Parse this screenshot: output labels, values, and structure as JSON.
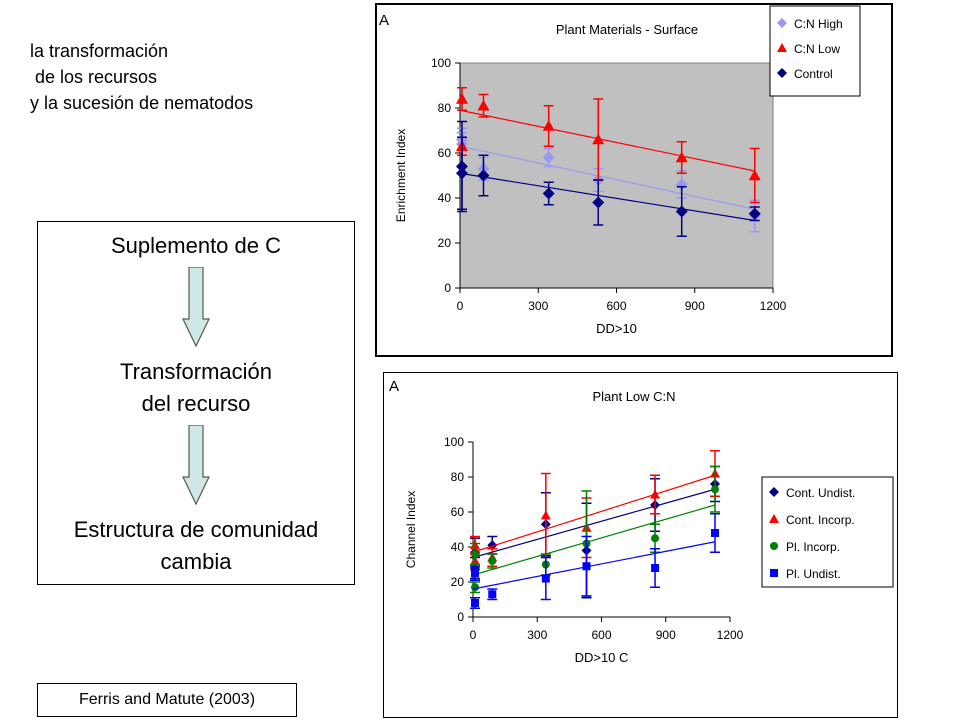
{
  "slide": {
    "title_lines": [
      "la transformación",
      " de los recursos",
      "y la sucesión de nematodos"
    ],
    "flow": {
      "step1": "Suplemento de C",
      "step2_line1": "Transformación",
      "step2_line2": "del recurso",
      "step3_line1": "Estructura de comunidad",
      "step3_line2": "cambia"
    },
    "citation": "Ferris and Matute (2003)"
  },
  "chart_data": [
    {
      "type": "scatter",
      "panel_label": "A",
      "title": "Plant Materials - Surface",
      "xlabel": "DD>10",
      "ylabel": "Enrichment Index",
      "xlim": [
        0,
        1200
      ],
      "ylim": [
        0,
        100
      ],
      "xticks": [
        "0",
        "300",
        "600",
        "900",
        "1200"
      ],
      "yticks": [
        "0",
        "20",
        "40",
        "60",
        "80",
        "100"
      ],
      "legend_position": "top-right",
      "plot_background": "#c0c0c0",
      "series": [
        {
          "name": "C:N High",
          "color": "#9999ee",
          "marker": "diamond",
          "x": [
            0,
            0,
            90,
            340,
            530,
            850,
            1130
          ],
          "y": [
            66,
            64,
            53,
            58,
            48,
            46,
            32
          ],
          "err": [
            5,
            5,
            5,
            4,
            5,
            6,
            7
          ],
          "trend": [
            [
              0,
              63
            ],
            [
              1130,
              35
            ]
          ]
        },
        {
          "name": "C:N Low",
          "color": "#ff0000",
          "marker": "triangle",
          "x": [
            0,
            0,
            90,
            340,
            530,
            850,
            1130
          ],
          "y": [
            84,
            63,
            81,
            72,
            66,
            58,
            50
          ],
          "err": [
            5,
            4,
            5,
            9,
            18,
            7,
            12
          ],
          "trend": [
            [
              0,
              79
            ],
            [
              1130,
              52
            ]
          ]
        },
        {
          "name": "Control",
          "color": "#000080",
          "marker": "diamond",
          "x": [
            0,
            0,
            90,
            340,
            530,
            850,
            1130
          ],
          "y": [
            54,
            51,
            50,
            42,
            38,
            34,
            33
          ],
          "err": [
            20,
            16,
            9,
            5,
            10,
            11,
            3
          ],
          "trend": [
            [
              0,
              51
            ],
            [
              1130,
              30
            ]
          ]
        }
      ]
    },
    {
      "type": "scatter",
      "panel_label": "A",
      "title": "Plant Low C:N",
      "xlabel": "DD>10 C",
      "ylabel": "Channel Index",
      "xlim": [
        0,
        1200
      ],
      "ylim": [
        0,
        100
      ],
      "xticks": [
        "0",
        "300",
        "600",
        "900",
        "1200"
      ],
      "yticks": [
        "0",
        "20",
        "40",
        "60",
        "80",
        "100"
      ],
      "legend_position": "right",
      "series": [
        {
          "name": "Cont. Undist.",
          "color": "#000080",
          "marker": "diamond",
          "x": [
            0,
            0,
            90,
            340,
            530,
            850,
            1130
          ],
          "y": [
            37,
            28,
            41,
            53,
            38,
            64,
            76
          ],
          "err": [
            8,
            6,
            5,
            18,
            27,
            15,
            10
          ],
          "trend": [
            [
              0,
              34
            ],
            [
              1130,
              73
            ]
          ]
        },
        {
          "name": "Cont. Incorp.",
          "color": "#ff0000",
          "marker": "triangle",
          "x": [
            0,
            0,
            90,
            340,
            530,
            850,
            1130
          ],
          "y": [
            41,
            32,
            34,
            58,
            51,
            70,
            82
          ],
          "err": [
            5,
            5,
            5,
            24,
            17,
            11,
            13
          ],
          "trend": [
            [
              0,
              37
            ],
            [
              1130,
              81
            ]
          ]
        },
        {
          "name": "Pl. Incorp.",
          "color": "#008000",
          "marker": "circle",
          "x": [
            0,
            0,
            90,
            340,
            530,
            850,
            1130
          ],
          "y": [
            36,
            17,
            32,
            30,
            42,
            45,
            73
          ],
          "err": [
            6,
            3,
            4,
            6,
            30,
            8,
            13
          ],
          "trend": [
            [
              0,
              24
            ],
            [
              1130,
              64
            ]
          ]
        },
        {
          "name": "Pl. Undist.",
          "color": "#0000ff",
          "marker": "square",
          "x": [
            0,
            0,
            90,
            340,
            530,
            850,
            1130
          ],
          "y": [
            25,
            8,
            13,
            22,
            29,
            28,
            48
          ],
          "err": [
            4,
            3,
            3,
            12,
            17,
            11,
            11
          ],
          "trend": [
            [
              0,
              16
            ],
            [
              1130,
              43
            ]
          ]
        }
      ]
    }
  ]
}
